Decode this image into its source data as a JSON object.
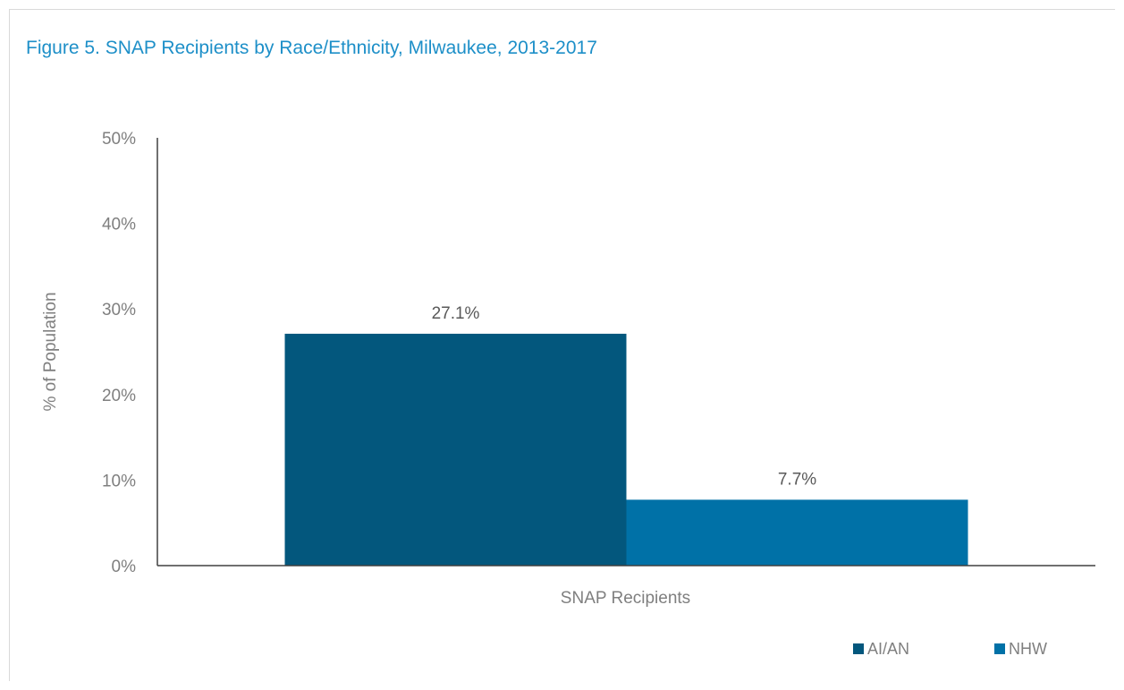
{
  "chart_data": {
    "type": "bar",
    "title": "Figure 5. SNAP Recipients by Race/Ethnicity, Milwaukee, 2013-2017",
    "xlabel": "",
    "ylabel": "% of Population",
    "categories": [
      "SNAP Recipients"
    ],
    "series": [
      {
        "name": "AI/AN",
        "values": [
          27.1
        ],
        "color": "#03577d",
        "label": "27.1%"
      },
      {
        "name": "NHW",
        "values": [
          7.7
        ],
        "color": "#0071a7",
        "label": "7.7%"
      }
    ],
    "ylim": [
      0,
      50
    ],
    "yticks": [
      {
        "value": 0,
        "label": "0%"
      },
      {
        "value": 10,
        "label": "10%"
      },
      {
        "value": 20,
        "label": "20%"
      },
      {
        "value": 30,
        "label": "30%"
      },
      {
        "value": 40,
        "label": "40%"
      },
      {
        "value": 50,
        "label": "50%"
      }
    ],
    "grid": false,
    "legend": "bottom-right"
  }
}
